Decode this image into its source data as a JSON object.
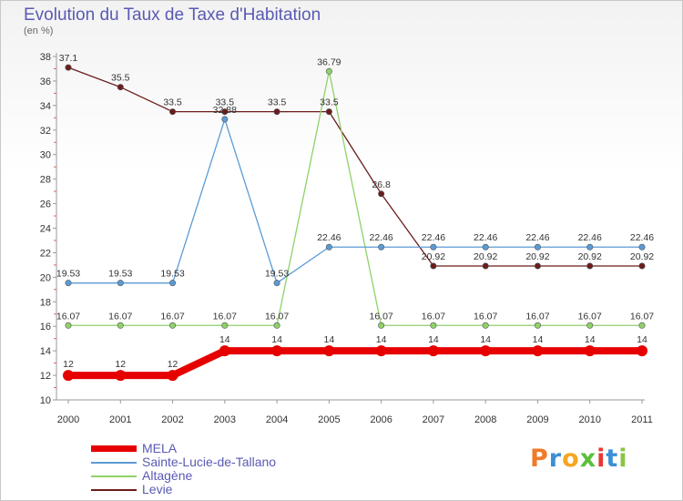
{
  "header": {
    "title": "Evolution du Taux de Taxe d'Habitation",
    "subtitle": "(en %)"
  },
  "logo": {
    "text": "Proxiti",
    "colors": [
      "#f07a2a",
      "#3a8fd6",
      "#f5a623",
      "#5bbf3a",
      "#e53935",
      "#3a8fd6",
      "#8bc34a"
    ]
  },
  "chart_data": {
    "type": "line",
    "title": "Evolution du Taux de Taxe d'Habitation",
    "ylabel": "(en %)",
    "xlabel": "",
    "categories": [
      "2000",
      "2001",
      "2002",
      "2003",
      "2004",
      "2005",
      "2006",
      "2007",
      "2008",
      "2009",
      "2010",
      "2011"
    ],
    "ylim": [
      10,
      38
    ],
    "yticks": [
      10,
      12,
      14,
      16,
      18,
      20,
      22,
      24,
      26,
      28,
      30,
      32,
      34,
      36,
      38
    ],
    "grid": false,
    "legend": "bottom-left",
    "series": [
      {
        "name": "MELA",
        "color": "#e60000",
        "values": [
          12,
          12,
          12,
          14,
          14,
          14,
          14,
          14,
          14,
          14,
          14,
          14
        ],
        "labels": [
          "12",
          "12",
          "12",
          "14",
          "14",
          "14",
          "14",
          "14",
          "14",
          "14",
          "14",
          "14"
        ]
      },
      {
        "name": "Sainte-Lucie-de-Tallano",
        "color": "#5b9bd5",
        "values": [
          19.53,
          19.53,
          19.53,
          32.88,
          19.53,
          22.46,
          22.46,
          22.46,
          22.46,
          22.46,
          22.46,
          22.46
        ],
        "labels": [
          "19.53",
          "19.53",
          "19.53",
          "32.88",
          "19.53",
          "22.46",
          "22.46",
          "22.46",
          "22.46",
          "22.46",
          "22.46",
          "22.46"
        ]
      },
      {
        "name": "Altagène",
        "color": "#8fd16a",
        "values": [
          16.07,
          16.07,
          16.07,
          16.07,
          16.07,
          36.79,
          16.07,
          16.07,
          16.07,
          16.07,
          16.07,
          16.07
        ],
        "labels": [
          "16.07",
          "16.07",
          "16.07",
          "16.07",
          "16.07",
          "36.79",
          "16.07",
          "16.07",
          "16.07",
          "16.07",
          "16.07",
          "16.07"
        ]
      },
      {
        "name": "Levie",
        "color": "#6b1c1c",
        "values": [
          37.1,
          35.5,
          33.5,
          33.5,
          33.5,
          33.5,
          26.8,
          20.92,
          20.92,
          20.92,
          20.92,
          20.92
        ],
        "labels": [
          "37.1",
          "35.5",
          "33.5",
          "33.5",
          "33.5",
          "33.5",
          "26.8",
          "20.92",
          "20.92",
          "20.92",
          "20.92",
          "20.92"
        ]
      }
    ]
  }
}
